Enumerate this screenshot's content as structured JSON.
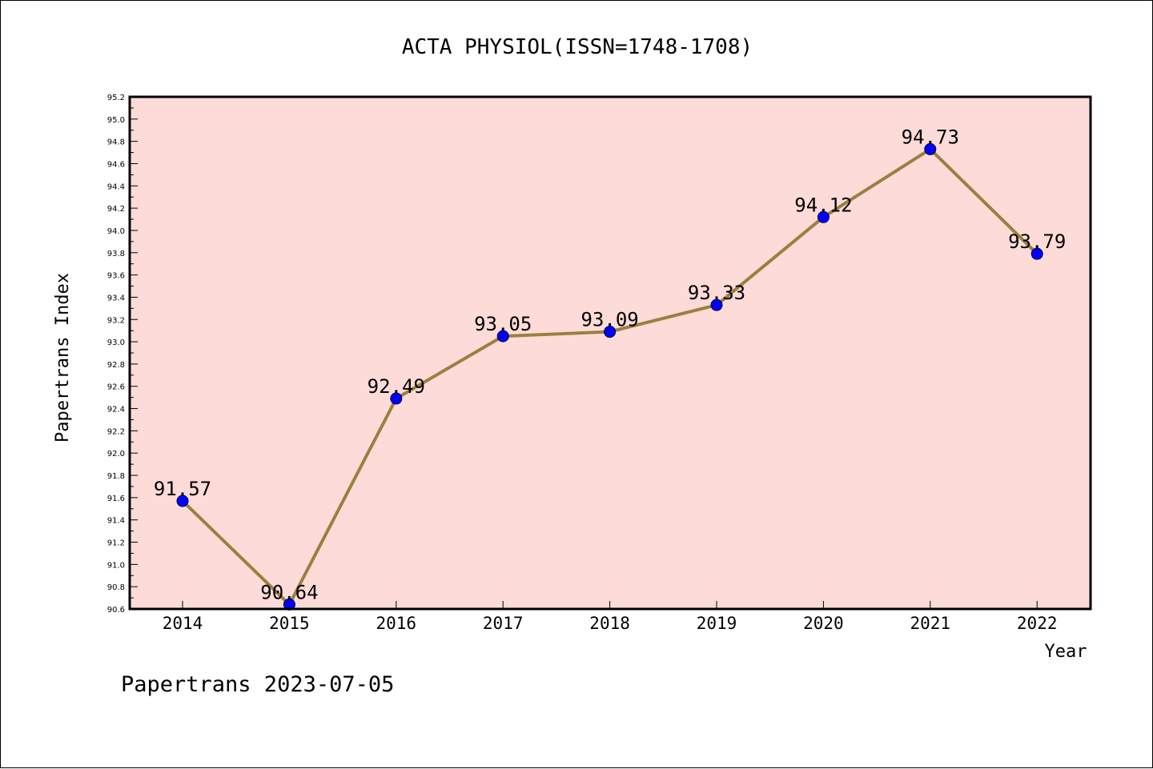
{
  "chart_data": {
    "type": "line",
    "title": "ACTA PHYSIOL(ISSN=1748-1708)",
    "xlabel": "Year",
    "ylabel": "Papertrans Index",
    "categories": [
      "2014",
      "2015",
      "2016",
      "2017",
      "2018",
      "2019",
      "2020",
      "2021",
      "2022"
    ],
    "series": [
      {
        "values": [
          91.57,
          90.64,
          92.49,
          93.05,
          93.09,
          93.33,
          94.12,
          94.73,
          93.79
        ],
        "labels": [
          "91.57",
          "90.64",
          "92.49",
          "93.05",
          "93.09",
          "93.33",
          "94.12",
          "94.73",
          "93.79"
        ]
      }
    ],
    "ylim": [
      90.6,
      95.2
    ],
    "yticks": [
      "90.6",
      "90.8",
      "91.0",
      "91.2",
      "91.4",
      "91.6",
      "91.8",
      "92.0",
      "92.2",
      "92.4",
      "92.6",
      "92.8",
      "93.0",
      "93.2",
      "93.4",
      "93.6",
      "93.8",
      "94.0",
      "94.2",
      "94.4",
      "94.6",
      "94.8",
      "95.0",
      "95.2"
    ],
    "grid": false,
    "colors": {
      "plot_background": "#fddbd8",
      "line": "#9a8040",
      "marker": "#0000ff",
      "axes": "#000000"
    }
  },
  "footer": "Papertrans 2023-07-05"
}
